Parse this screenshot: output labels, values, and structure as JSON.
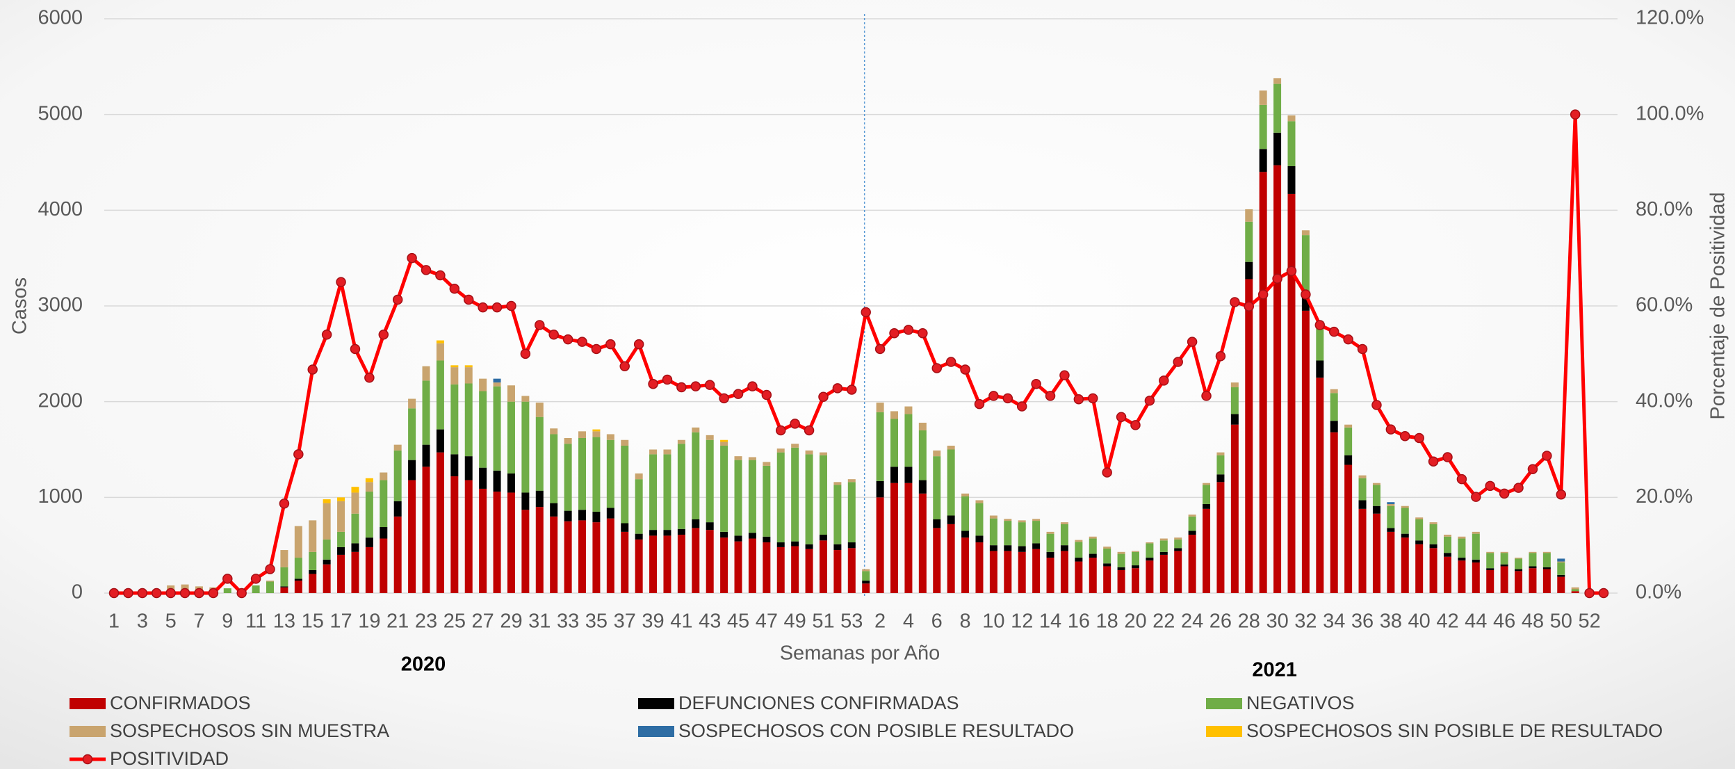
{
  "chart_data": {
    "type": "bar",
    "stacked": true,
    "x_label": "Semanas por Año",
    "y_label": "Casos",
    "y2_label": "Porcentaje de Positividad",
    "groups": [
      "2020",
      "2021"
    ],
    "categories": [
      "1",
      null,
      "3",
      null,
      "5",
      null,
      "7",
      null,
      "9",
      null,
      "11",
      null,
      "13",
      null,
      "15",
      null,
      "17",
      null,
      "19",
      null,
      "21",
      null,
      "23",
      null,
      "25",
      null,
      "27",
      null,
      "29",
      null,
      "31",
      null,
      "33",
      null,
      "35",
      null,
      "37",
      null,
      "39",
      null,
      "41",
      null,
      "43",
      null,
      "45",
      null,
      "47",
      null,
      "49",
      null,
      "51",
      null,
      "53",
      null,
      "2",
      null,
      "4",
      null,
      "6",
      null,
      "8",
      null,
      "10",
      null,
      "12",
      null,
      "14",
      null,
      "16",
      null,
      "18",
      null,
      "20",
      null,
      "22",
      null,
      "24",
      null,
      "26",
      null,
      "28",
      null,
      "30",
      null,
      "32",
      null,
      "34",
      null,
      "36",
      null,
      "38",
      null,
      "40",
      null,
      "42",
      null,
      "44",
      null,
      "46",
      null,
      "48",
      null,
      "50",
      null,
      "52",
      null
    ],
    "ylim": [
      0,
      6000
    ],
    "yticks": [
      0,
      1000,
      2000,
      3000,
      4000,
      5000,
      6000
    ],
    "y2lim": [
      0,
      120
    ],
    "y2ticks": [
      {
        "value": 0,
        "label": "0.0%"
      },
      {
        "value": 20,
        "label": "20.0%"
      },
      {
        "value": 40,
        "label": "40.0%"
      },
      {
        "value": 60,
        "label": "60.0%"
      },
      {
        "value": 80,
        "label": "80.0%"
      },
      {
        "value": 100,
        "label": "100.0%"
      },
      {
        "value": 120,
        "label": "120.0%"
      }
    ],
    "grid": true,
    "legend": "bottom",
    "series": [
      {
        "name": "CONFIRMADOS",
        "color": "#c00000",
        "values": [
          0,
          0,
          0,
          0,
          0,
          0,
          0,
          0,
          0,
          0,
          0,
          0,
          60,
          130,
          200,
          300,
          400,
          430,
          480,
          570,
          800,
          1180,
          1320,
          1470,
          1220,
          1180,
          1090,
          1060,
          1050,
          870,
          900,
          800,
          750,
          760,
          740,
          780,
          640,
          560,
          600,
          600,
          610,
          680,
          660,
          580,
          540,
          570,
          530,
          480,
          490,
          460,
          550,
          450,
          470,
          100,
          1000,
          1150,
          1150,
          1040,
          680,
          720,
          580,
          530,
          440,
          440,
          430,
          460,
          370,
          440,
          330,
          370,
          280,
          240,
          260,
          340,
          400,
          440,
          610,
          880,
          1160,
          1760,
          3280,
          4400,
          4470,
          4170,
          2950,
          2250,
          1680,
          1340,
          880,
          830,
          640,
          580,
          510,
          470,
          380,
          340,
          320,
          240,
          280,
          230,
          260,
          250,
          170,
          20,
          5,
          0
        ]
      },
      {
        "name": "DEFUNCIONES CONFIRMADAS",
        "color": "#000000",
        "values": [
          0,
          0,
          0,
          0,
          0,
          0,
          0,
          0,
          0,
          0,
          0,
          0,
          10,
          20,
          40,
          50,
          80,
          90,
          100,
          120,
          160,
          210,
          230,
          240,
          230,
          250,
          220,
          220,
          200,
          180,
          170,
          140,
          110,
          110,
          110,
          110,
          90,
          60,
          60,
          60,
          60,
          90,
          80,
          60,
          60,
          60,
          60,
          50,
          50,
          50,
          60,
          60,
          60,
          30,
          170,
          170,
          170,
          140,
          90,
          90,
          70,
          70,
          60,
          60,
          60,
          60,
          60,
          60,
          40,
          40,
          30,
          30,
          30,
          30,
          30,
          30,
          40,
          50,
          80,
          110,
          180,
          240,
          340,
          290,
          200,
          180,
          120,
          100,
          90,
          80,
          40,
          40,
          40,
          40,
          40,
          30,
          30,
          20,
          20,
          20,
          20,
          20,
          20,
          0,
          0,
          0
        ]
      },
      {
        "name": "NEGATIVOS",
        "color": "#70ad47",
        "values": [
          0,
          0,
          0,
          0,
          0,
          0,
          0,
          0,
          50,
          30,
          80,
          120,
          200,
          220,
          190,
          210,
          160,
          310,
          480,
          490,
          530,
          540,
          670,
          720,
          730,
          760,
          800,
          880,
          750,
          950,
          770,
          720,
          700,
          750,
          780,
          710,
          810,
          570,
          790,
          790,
          890,
          910,
          860,
          900,
          790,
          760,
          740,
          940,
          980,
          940,
          830,
          620,
          630,
          100,
          720,
          500,
          550,
          520,
          660,
          690,
          360,
          340,
          280,
          255,
          250,
          235,
          190,
          220,
          165,
          160,
          155,
          140,
          140,
          150,
          120,
          90,
          150,
          200,
          200,
          280,
          420,
          460,
          510,
          470,
          590,
          370,
          290,
          290,
          230,
          220,
          230,
          270,
          220,
          210,
          170,
          200,
          270,
          160,
          120,
          110,
          140,
          150,
          130,
          20,
          0,
          0
        ]
      },
      {
        "name": "SOSPECHOSOS SIN MUESTRA",
        "color": "#c9a46e",
        "values": [
          0,
          0,
          0,
          0,
          80,
          90,
          70,
          60,
          0,
          0,
          0,
          10,
          180,
          330,
          330,
          380,
          320,
          220,
          100,
          80,
          60,
          100,
          150,
          180,
          180,
          170,
          130,
          40,
          170,
          60,
          150,
          60,
          60,
          70,
          60,
          60,
          60,
          60,
          50,
          50,
          40,
          50,
          50,
          40,
          40,
          30,
          40,
          40,
          40,
          40,
          30,
          30,
          30,
          20,
          100,
          80,
          80,
          80,
          60,
          40,
          30,
          30,
          30,
          20,
          20,
          20,
          20,
          20,
          20,
          20,
          20,
          20,
          10,
          10,
          20,
          20,
          20,
          20,
          30,
          50,
          130,
          150,
          60,
          60,
          50,
          40,
          40,
          30,
          30,
          20,
          20,
          20,
          20,
          20,
          20,
          20,
          20,
          10,
          10,
          10,
          10,
          10,
          10,
          20,
          0,
          0
        ]
      },
      {
        "name": "SOSPECHOSOS CON POSIBLE RESULTADO",
        "color": "#2e6da4",
        "values": [
          0,
          0,
          0,
          0,
          0,
          0,
          0,
          0,
          0,
          0,
          0,
          0,
          0,
          0,
          0,
          0,
          0,
          0,
          0,
          0,
          0,
          0,
          0,
          0,
          0,
          0,
          0,
          40,
          0,
          0,
          0,
          0,
          0,
          0,
          0,
          0,
          0,
          0,
          0,
          0,
          0,
          0,
          0,
          0,
          0,
          0,
          0,
          0,
          0,
          0,
          0,
          0,
          0,
          0,
          0,
          0,
          0,
          0,
          0,
          0,
          0,
          0,
          0,
          0,
          0,
          0,
          0,
          0,
          0,
          0,
          0,
          0,
          0,
          0,
          0,
          0,
          0,
          0,
          0,
          0,
          0,
          0,
          0,
          0,
          0,
          0,
          0,
          0,
          0,
          0,
          20,
          0,
          0,
          0,
          0,
          0,
          0,
          0,
          0,
          0,
          0,
          0,
          30,
          0,
          0,
          0
        ]
      },
      {
        "name": "SOSPECHOSOS SIN POSIBLE DE RESULTADO",
        "color": "#ffc000",
        "values": [
          0,
          0,
          0,
          0,
          0,
          0,
          0,
          0,
          0,
          0,
          0,
          0,
          0,
          0,
          0,
          40,
          40,
          60,
          40,
          0,
          0,
          0,
          0,
          30,
          20,
          20,
          0,
          0,
          0,
          0,
          0,
          0,
          0,
          0,
          20,
          0,
          0,
          0,
          0,
          0,
          0,
          0,
          0,
          20,
          0,
          0,
          0,
          0,
          0,
          0,
          0,
          0,
          0,
          0,
          0,
          0,
          0,
          0,
          0,
          0,
          0,
          0,
          0,
          0,
          0,
          0,
          0,
          0,
          0,
          0,
          0,
          0,
          0,
          0,
          0,
          0,
          0,
          0,
          0,
          0,
          0,
          0,
          0,
          0,
          0,
          0,
          0,
          0,
          0,
          0,
          0,
          0,
          0,
          0,
          0,
          0,
          0,
          0,
          0,
          0,
          0,
          0,
          0,
          0,
          0,
          0
        ]
      },
      {
        "name": "POSITIVIDAD",
        "type": "line",
        "axis": "y2",
        "color": "#ff0000",
        "values": [
          0,
          0,
          0,
          0,
          0,
          0,
          0,
          0,
          3,
          0,
          3,
          5,
          18.7,
          29,
          46.7,
          54,
          65,
          51,
          45,
          54,
          61.3,
          70,
          67.5,
          66.4,
          63.6,
          61.3,
          59.7,
          59.7,
          60,
          50,
          56,
          54,
          53,
          52.5,
          51,
          52,
          47.4,
          52,
          43.7,
          44.6,
          43,
          43.2,
          43.5,
          40.7,
          41.6,
          43.2,
          41.4,
          34,
          35.4,
          34,
          41,
          42.8,
          42.5,
          58.7,
          51,
          54.3,
          55,
          54.3,
          47,
          48.3,
          46.7,
          39.5,
          41.2,
          40.7,
          39,
          43.7,
          41.2,
          45.5,
          40.5,
          40.7,
          25.2,
          36.8,
          35.1,
          40.2,
          44.4,
          48.3,
          52.5,
          41.2,
          49.5,
          60.8,
          59.9,
          62.4,
          65.7,
          67.3,
          62.4,
          56,
          54.6,
          53,
          51,
          39.3,
          34.2,
          32.8,
          32.4,
          27.5,
          28.4,
          23.8,
          20.1,
          22.4,
          20.8,
          22,
          25.9,
          28.7,
          20.6,
          100,
          0,
          0
        ]
      }
    ]
  }
}
